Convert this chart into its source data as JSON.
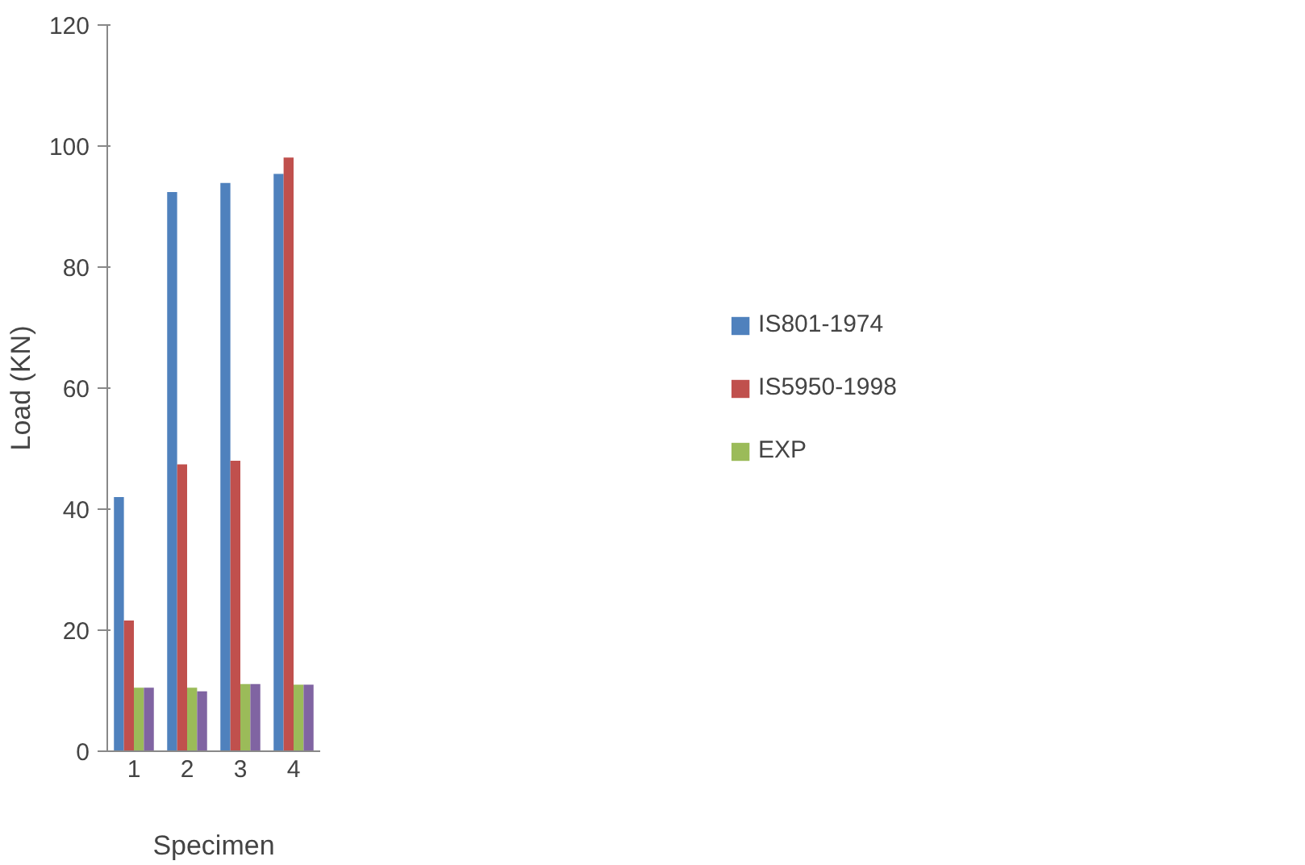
{
  "chart_data": {
    "type": "bar",
    "xlabel": "Specimen",
    "ylabel": "Load (KN)",
    "categories": [
      "1",
      "2",
      "3",
      "4"
    ],
    "series": [
      {
        "name": "IS801-1974",
        "color": "#4f81bd",
        "values": [
          42,
          92.4,
          93.9,
          95.4
        ]
      },
      {
        "name": "IS5950-1998",
        "color": "#c0504d",
        "values": [
          21.6,
          47.4,
          48,
          98.1
        ]
      },
      {
        "name": "EXP",
        "color": "#9bbb59",
        "values": [
          10.5,
          10.5,
          11.1,
          11
        ]
      },
      {
        "color": "#8064a2",
        "values": [
          10.5,
          9.9,
          11.1,
          11
        ]
      }
    ],
    "ylim": [
      0,
      120
    ],
    "yticks": [
      0,
      20,
      40,
      60,
      80,
      100,
      120
    ],
    "grid": false,
    "legend": "right"
  }
}
